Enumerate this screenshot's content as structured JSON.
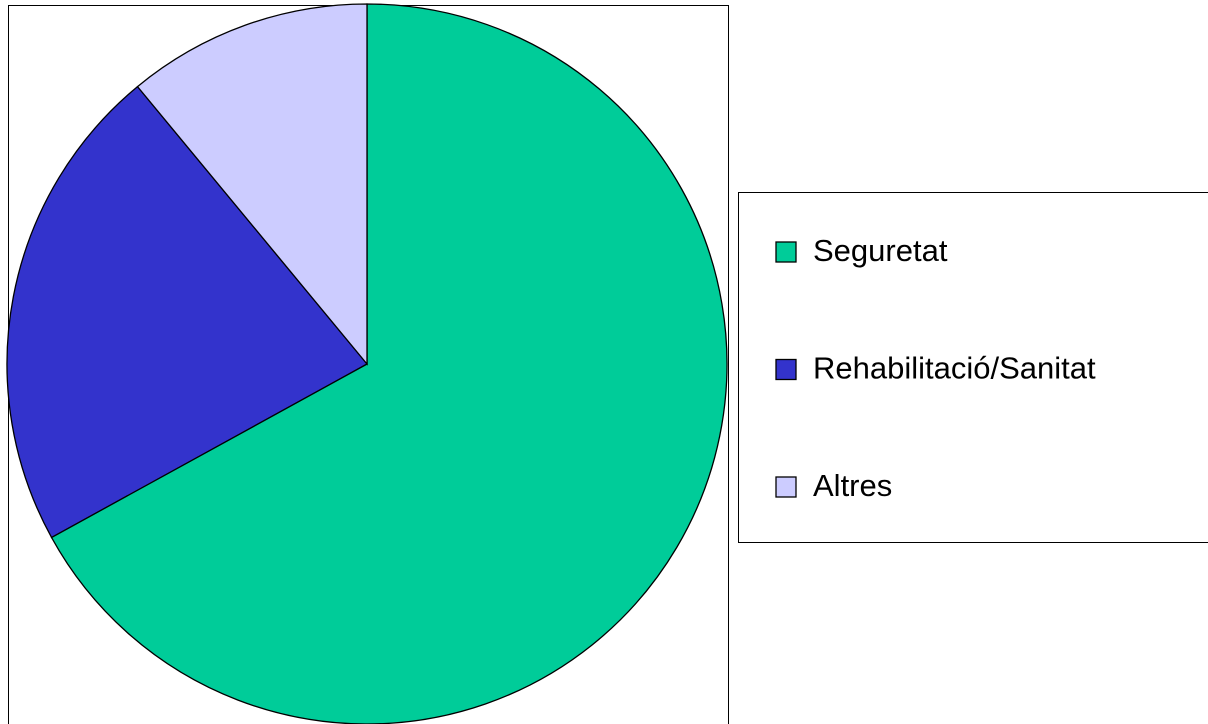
{
  "chart_data": {
    "type": "pie",
    "categories": [
      "Seguretat",
      "Rehabilitació/Sanitat",
      "Altres"
    ],
    "values": [
      67,
      22,
      11
    ],
    "colors": [
      "#00cc99",
      "#3333cc",
      "#ccccff"
    ],
    "legend": "right"
  }
}
